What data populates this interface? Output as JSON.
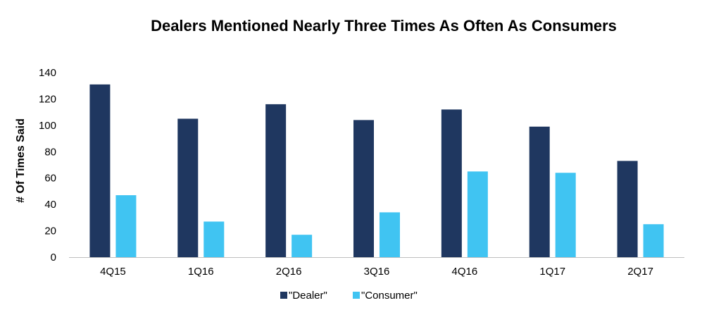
{
  "chart_data": {
    "type": "bar",
    "title": "Dealers Mentioned Nearly Three Times As Often As Consumers",
    "xlabel": "",
    "ylabel": "# Of Times Said",
    "ylim": [
      0,
      140
    ],
    "yticks": [
      0,
      20,
      40,
      60,
      80,
      100,
      120,
      140
    ],
    "grid": false,
    "legend": "bottom",
    "categories": [
      "4Q15",
      "1Q16",
      "2Q16",
      "3Q16",
      "4Q16",
      "1Q17",
      "2Q17"
    ],
    "series": [
      {
        "name": "\"Dealer\"",
        "color": "#1f3760",
        "values": [
          131,
          105,
          116,
          104,
          112,
          99,
          73
        ]
      },
      {
        "name": "\"Consumer\"",
        "color": "#40c4f2",
        "values": [
          47,
          27,
          17,
          34,
          65,
          64,
          25
        ]
      }
    ]
  }
}
